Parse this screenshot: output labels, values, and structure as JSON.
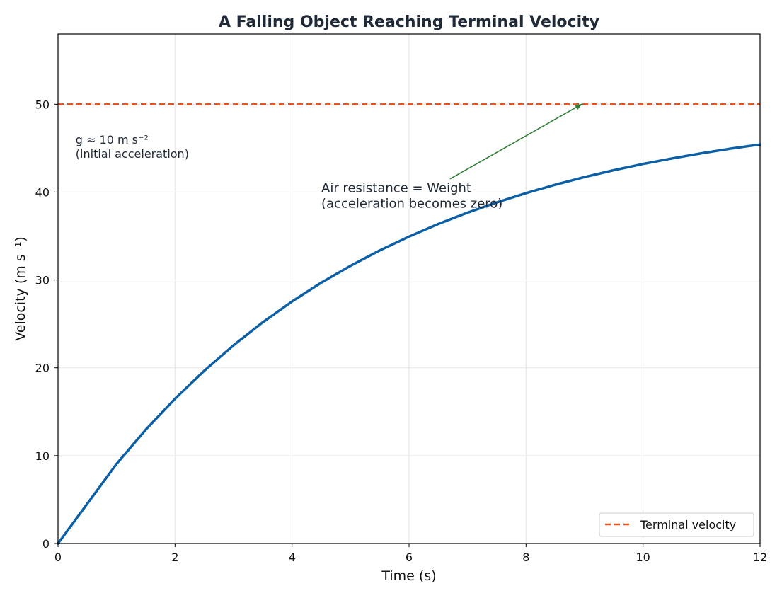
{
  "chart_data": {
    "type": "line",
    "title": "A Falling Object Reaching Terminal Velocity",
    "xlabel": "Time (s)",
    "ylabel": "Velocity (m s⁻¹)",
    "xlim": [
      0,
      12
    ],
    "ylim": [
      0,
      58
    ],
    "xticks": [
      0,
      2,
      4,
      6,
      8,
      10,
      12
    ],
    "yticks": [
      0,
      10,
      20,
      30,
      40,
      50
    ],
    "grid": true,
    "legend_position": "lower-right",
    "series": [
      {
        "color": "#0b5fa5",
        "x": [
          0,
          0.5,
          1,
          1.5,
          2,
          2.5,
          3,
          3.5,
          4,
          4.5,
          5,
          5.5,
          6,
          6.5,
          7,
          7.5,
          8,
          8.5,
          9,
          9.5,
          10,
          10.5,
          11,
          11.5,
          12
        ],
        "values": [
          0,
          4.53,
          9.06,
          12.96,
          16.48,
          19.67,
          22.56,
          25.18,
          27.55,
          29.69,
          31.61,
          33.37,
          34.94,
          36.37,
          37.66,
          38.83,
          39.88,
          40.84,
          41.71,
          42.49,
          43.2,
          43.84,
          44.42,
          44.95,
          45.42
        ]
      },
      {
        "name": "Terminal velocity",
        "color": "#e8541e",
        "style": "dashed",
        "x": [
          0,
          12
        ],
        "values": [
          50,
          50
        ]
      }
    ],
    "annotations": [
      {
        "lines": [
          "Air resistance = Weight",
          "(acceleration becomes zero)"
        ],
        "text_at": [
          4.5,
          40
        ],
        "arrow_from": [
          6.7,
          41.5
        ],
        "arrow_to": [
          8.95,
          50
        ],
        "arrow_color": "#2e7d32"
      },
      {
        "lines": [
          "g ≈ 10 m s⁻²",
          "(initial acceleration)"
        ],
        "text_at": [
          0.3,
          45.5
        ]
      }
    ]
  }
}
